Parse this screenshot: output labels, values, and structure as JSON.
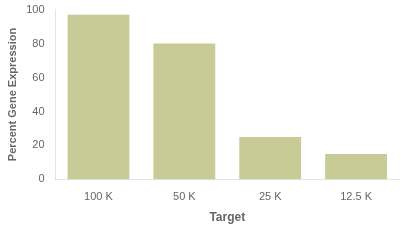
{
  "chart_data": {
    "type": "bar",
    "categories": [
      "100 K",
      "50 K",
      "25 K",
      "12.5 K"
    ],
    "values": [
      97,
      80,
      25,
      15
    ],
    "color": "#c8cb96",
    "xlabel": "Target",
    "ylabel": "Percent Gene Expression",
    "ylim": [
      0,
      100
    ],
    "yticks": [
      0,
      20,
      40,
      60,
      80,
      100
    ],
    "grid": false
  }
}
